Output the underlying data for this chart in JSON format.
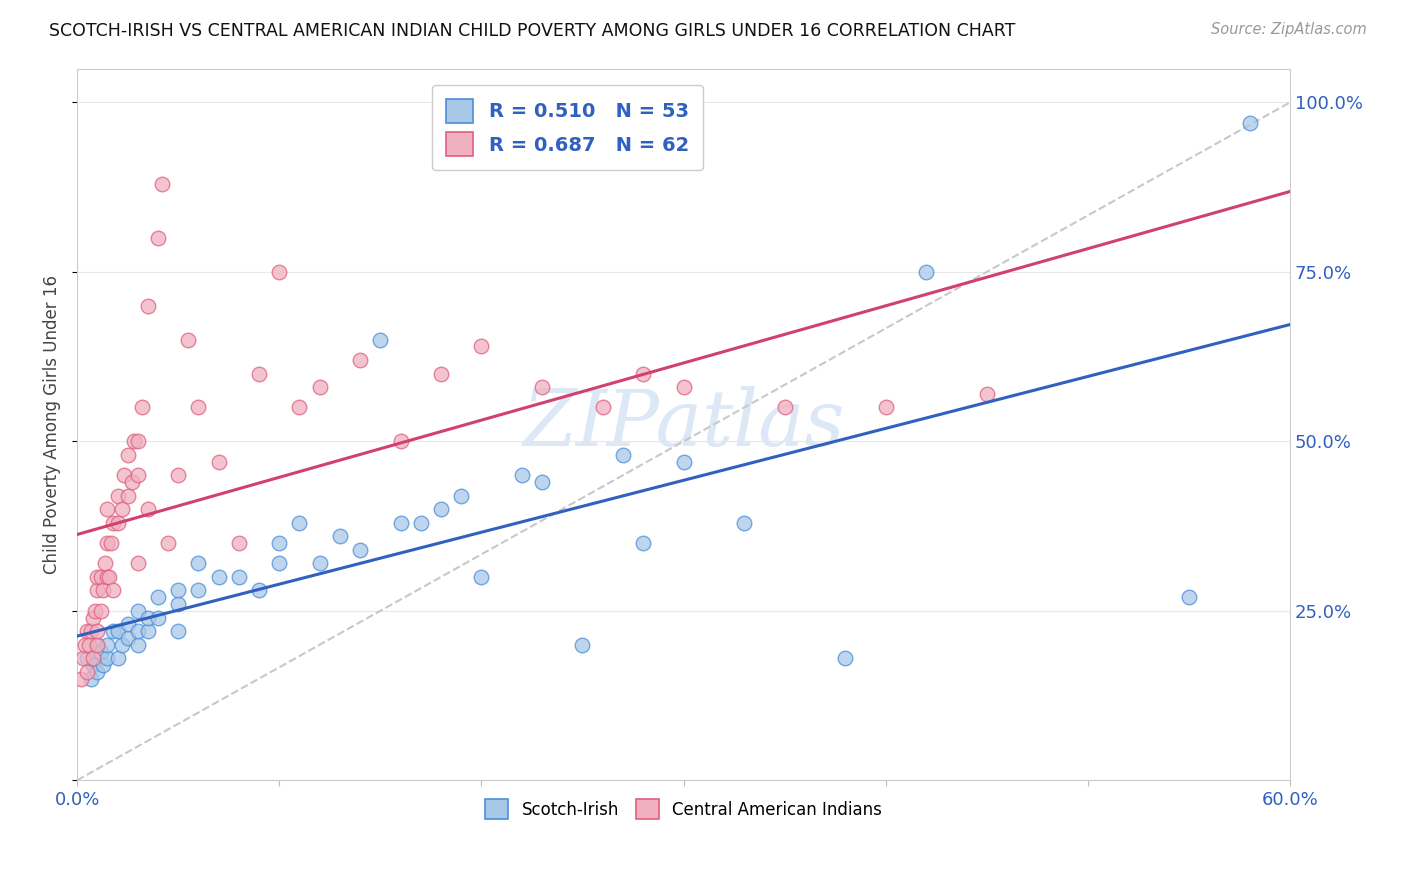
{
  "title": "SCOTCH-IRISH VS CENTRAL AMERICAN INDIAN CHILD POVERTY AMONG GIRLS UNDER 16 CORRELATION CHART",
  "source": "Source: ZipAtlas.com",
  "ylabel": "Child Poverty Among Girls Under 16",
  "xlim": [
    0.0,
    0.6
  ],
  "ylim": [
    0.0,
    1.05
  ],
  "xticks": [
    0.0,
    0.1,
    0.2,
    0.3,
    0.4,
    0.5,
    0.6
  ],
  "xticklabels": [
    "0.0%",
    "",
    "",
    "",
    "",
    "",
    "60.0%"
  ],
  "yticks": [
    0.0,
    0.25,
    0.5,
    0.75,
    1.0
  ],
  "yticklabels": [
    "",
    "25.0%",
    "50.0%",
    "75.0%",
    "100.0%"
  ],
  "blue_R": 0.51,
  "blue_N": 53,
  "pink_R": 0.687,
  "pink_N": 62,
  "blue_color": "#a8c8e8",
  "pink_color": "#f0b0c0",
  "blue_edge_color": "#4a90d9",
  "pink_edge_color": "#e06080",
  "blue_line_color": "#3060c0",
  "pink_line_color": "#d04070",
  "dashed_line_color": "#c8c8c8",
  "watermark_color": "#dce8f5",
  "background_color": "#ffffff",
  "grid_color": "#e8e8e8",
  "blue_scatter_x": [
    0.005,
    0.007,
    0.008,
    0.01,
    0.01,
    0.012,
    0.013,
    0.015,
    0.015,
    0.018,
    0.02,
    0.02,
    0.022,
    0.025,
    0.025,
    0.03,
    0.03,
    0.03,
    0.035,
    0.035,
    0.04,
    0.04,
    0.05,
    0.05,
    0.05,
    0.06,
    0.06,
    0.07,
    0.08,
    0.09,
    0.1,
    0.1,
    0.11,
    0.12,
    0.13,
    0.14,
    0.15,
    0.16,
    0.17,
    0.18,
    0.19,
    0.2,
    0.22,
    0.23,
    0.25,
    0.27,
    0.28,
    0.3,
    0.33,
    0.38,
    0.42,
    0.55,
    0.58
  ],
  "blue_scatter_y": [
    0.18,
    0.15,
    0.17,
    0.16,
    0.2,
    0.19,
    0.17,
    0.18,
    0.2,
    0.22,
    0.18,
    0.22,
    0.2,
    0.21,
    0.23,
    0.2,
    0.22,
    0.25,
    0.22,
    0.24,
    0.24,
    0.27,
    0.22,
    0.26,
    0.28,
    0.28,
    0.32,
    0.3,
    0.3,
    0.28,
    0.32,
    0.35,
    0.38,
    0.32,
    0.36,
    0.34,
    0.65,
    0.38,
    0.38,
    0.4,
    0.42,
    0.3,
    0.45,
    0.44,
    0.2,
    0.48,
    0.35,
    0.47,
    0.38,
    0.18,
    0.75,
    0.27,
    0.97
  ],
  "pink_scatter_x": [
    0.002,
    0.003,
    0.004,
    0.005,
    0.005,
    0.006,
    0.007,
    0.008,
    0.008,
    0.009,
    0.01,
    0.01,
    0.01,
    0.01,
    0.012,
    0.012,
    0.013,
    0.014,
    0.015,
    0.015,
    0.015,
    0.016,
    0.017,
    0.018,
    0.018,
    0.02,
    0.02,
    0.022,
    0.023,
    0.025,
    0.025,
    0.027,
    0.028,
    0.03,
    0.03,
    0.03,
    0.032,
    0.035,
    0.035,
    0.04,
    0.042,
    0.045,
    0.05,
    0.055,
    0.06,
    0.07,
    0.08,
    0.09,
    0.1,
    0.11,
    0.12,
    0.14,
    0.16,
    0.18,
    0.2,
    0.23,
    0.26,
    0.28,
    0.3,
    0.35,
    0.4,
    0.45
  ],
  "pink_scatter_y": [
    0.15,
    0.18,
    0.2,
    0.16,
    0.22,
    0.2,
    0.22,
    0.24,
    0.18,
    0.25,
    0.2,
    0.22,
    0.28,
    0.3,
    0.25,
    0.3,
    0.28,
    0.32,
    0.3,
    0.35,
    0.4,
    0.3,
    0.35,
    0.28,
    0.38,
    0.38,
    0.42,
    0.4,
    0.45,
    0.42,
    0.48,
    0.44,
    0.5,
    0.32,
    0.45,
    0.5,
    0.55,
    0.4,
    0.7,
    0.8,
    0.88,
    0.35,
    0.45,
    0.65,
    0.55,
    0.47,
    0.35,
    0.6,
    0.75,
    0.55,
    0.58,
    0.62,
    0.5,
    0.6,
    0.64,
    0.58,
    0.55,
    0.6,
    0.58,
    0.55,
    0.55,
    0.57
  ]
}
